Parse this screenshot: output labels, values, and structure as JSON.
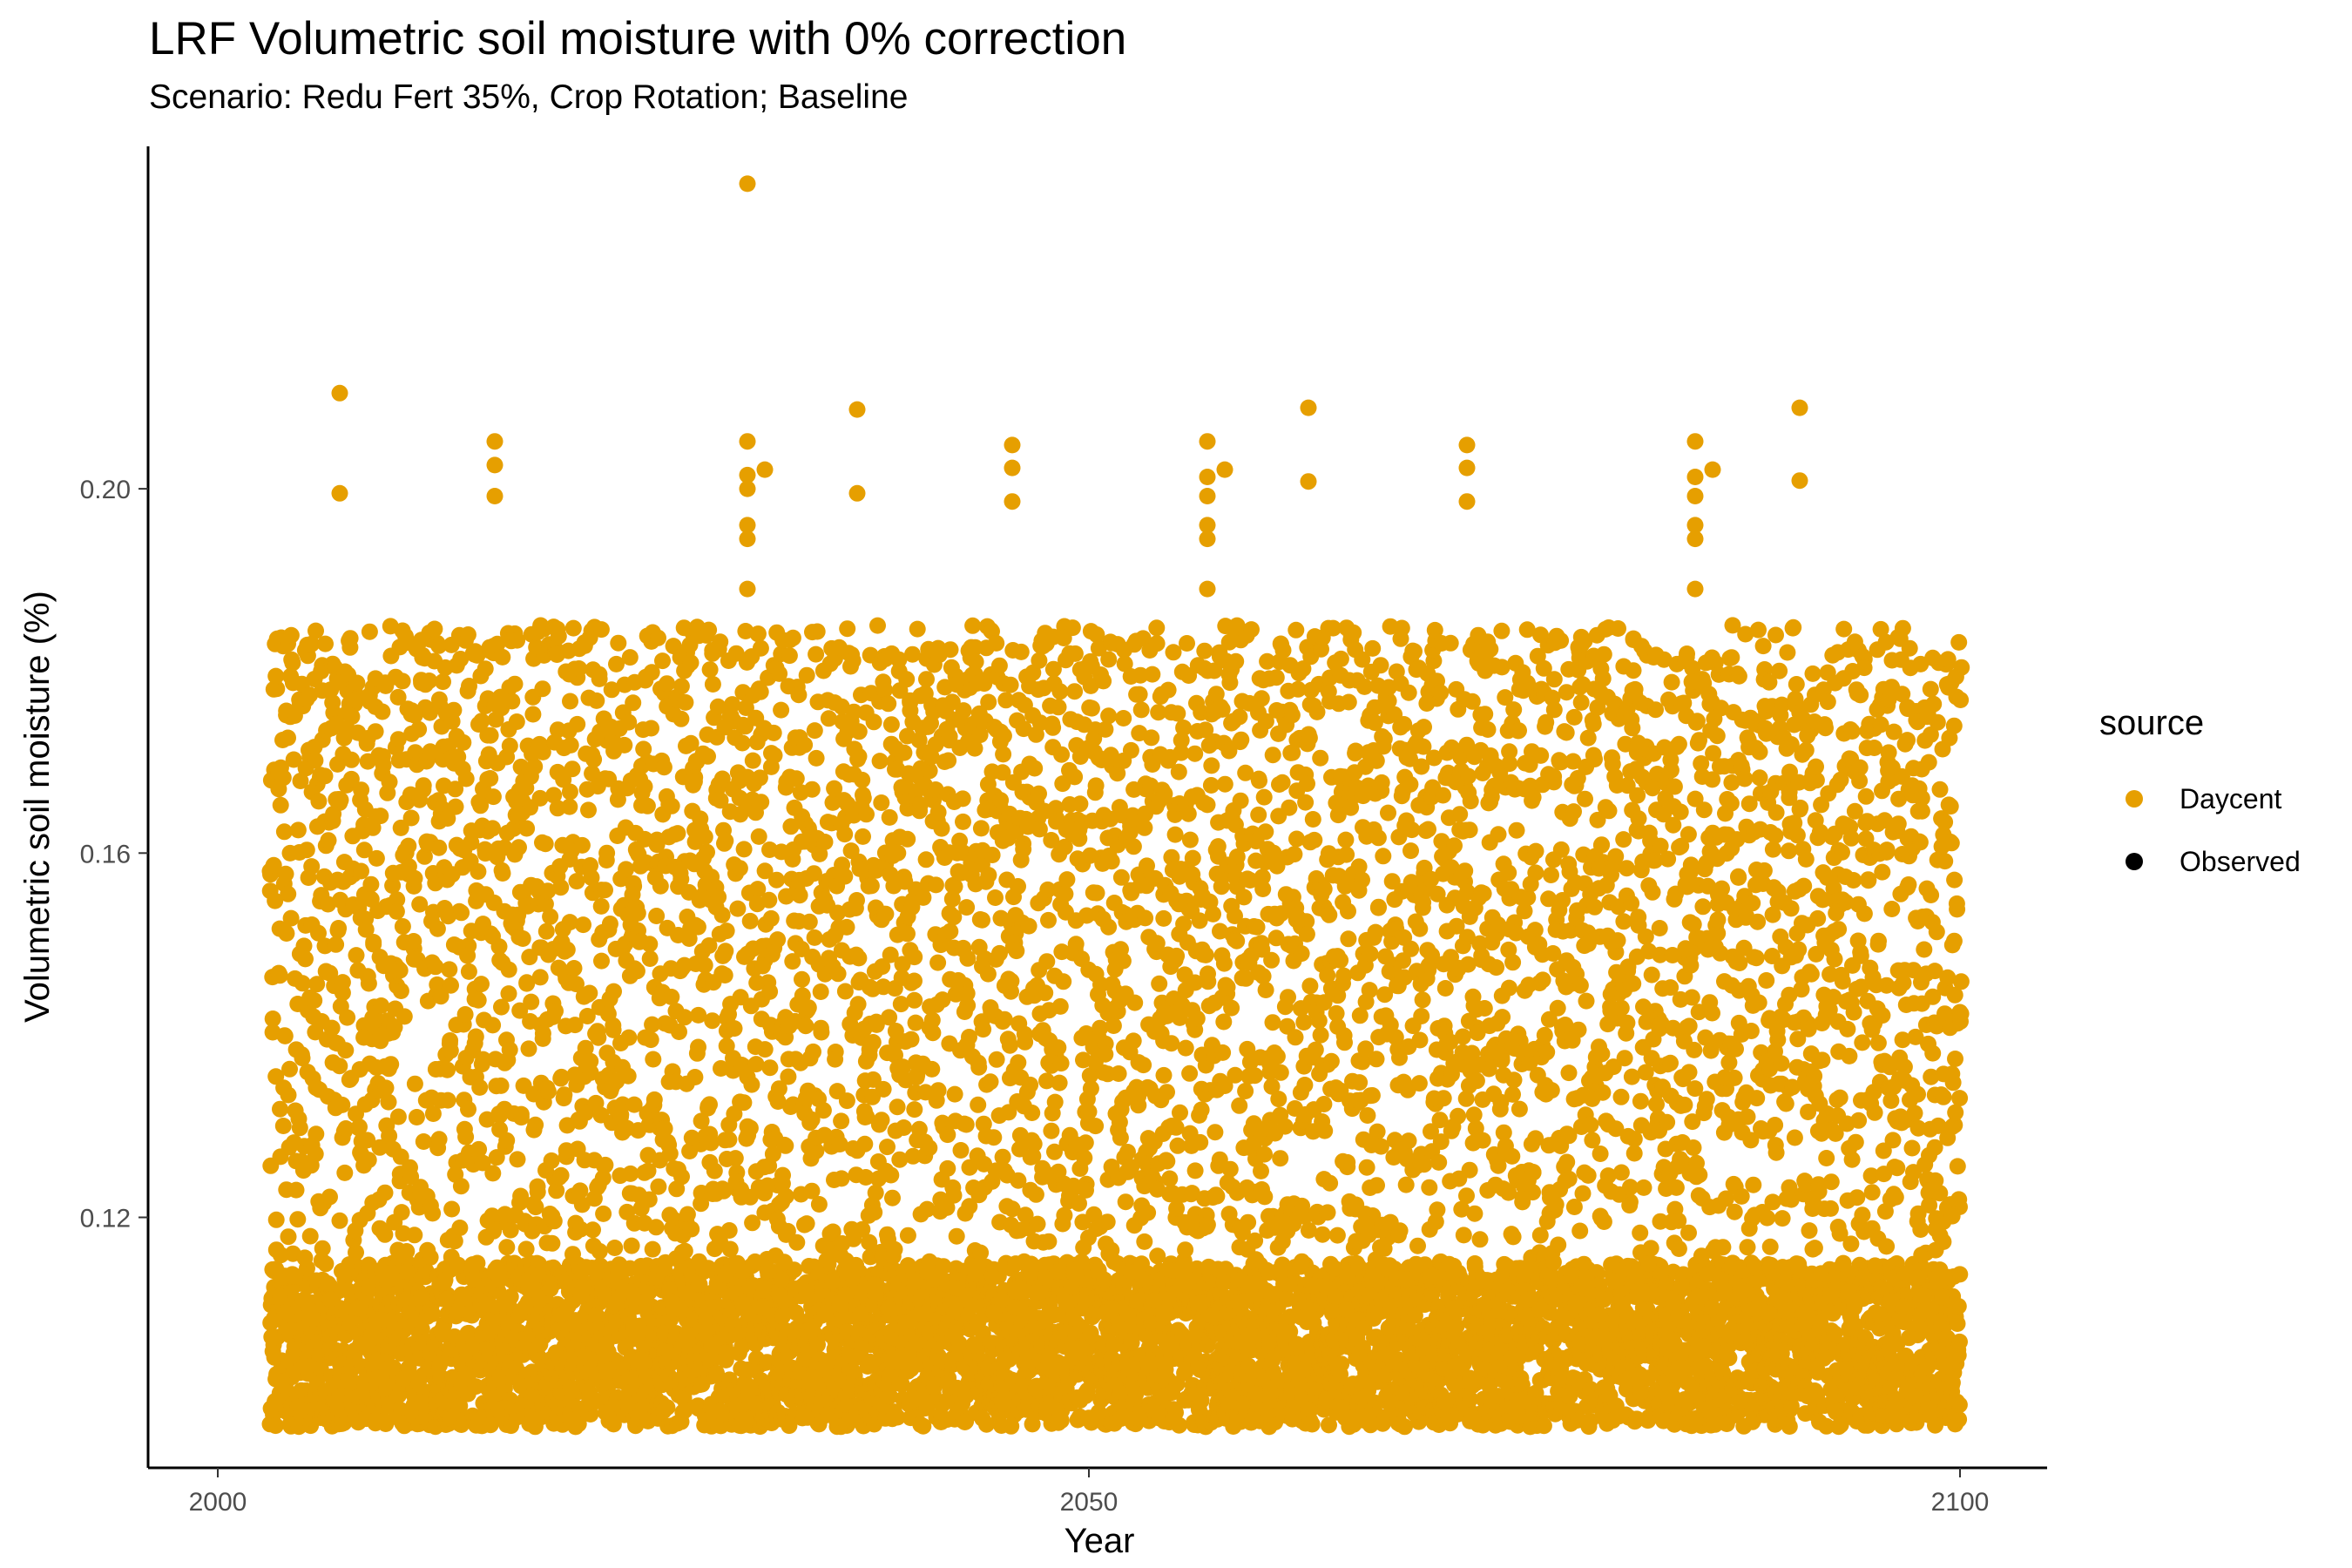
{
  "chart_data": {
    "type": "scatter",
    "title": "LRF Volumetric soil moisture with 0% correction",
    "subtitle": "Scenario: Redu Fert 35%, Crop Rotation; Baseline",
    "xlabel": "Year",
    "ylabel": "Volumetric soil moisture (%)",
    "xlim": [
      1996,
      2105
    ],
    "ylim": [
      0.0925,
      0.2376
    ],
    "x_ticks": [
      2000,
      2050,
      2100
    ],
    "y_ticks": [
      0.12,
      0.16,
      0.2
    ],
    "x_tick_labels": [
      "2000",
      "2050",
      "2100"
    ],
    "y_tick_labels": [
      "0.12",
      "0.16",
      "0.20"
    ],
    "grid": false,
    "legend": {
      "title": "source",
      "position": "right",
      "entries": [
        {
          "label": "Daycent",
          "color": "#E69F00"
        },
        {
          "label": "Observed",
          "color": "#000000"
        }
      ]
    },
    "series": [
      {
        "name": "Daycent",
        "color": "#E69F00",
        "x_range": [
          2003,
          2100
        ],
        "y_range_typical": [
          0.097,
          0.185
        ],
        "description_of_values": "daily simulated soil moisture, dense cloud between ~0.097 and ~0.185 with concentration near 0.10-0.115",
        "notable_points": [
          {
            "x": 2030.4,
            "y": 0.2335
          },
          {
            "x": 2007.0,
            "y": 0.2105
          },
          {
            "x": 2007.0,
            "y": 0.1995
          },
          {
            "x": 2015.9,
            "y": 0.2052
          },
          {
            "x": 2015.9,
            "y": 0.2026
          },
          {
            "x": 2015.9,
            "y": 0.1992
          },
          {
            "x": 2030.4,
            "y": 0.2052
          },
          {
            "x": 2030.4,
            "y": 0.2015
          },
          {
            "x": 2030.4,
            "y": 0.2
          },
          {
            "x": 2030.4,
            "y": 0.196
          },
          {
            "x": 2030.4,
            "y": 0.1945
          },
          {
            "x": 2030.4,
            "y": 0.189
          },
          {
            "x": 2031.4,
            "y": 0.2021
          },
          {
            "x": 2036.7,
            "y": 0.2087
          },
          {
            "x": 2036.7,
            "y": 0.1995
          },
          {
            "x": 2045.6,
            "y": 0.2048
          },
          {
            "x": 2045.6,
            "y": 0.2023
          },
          {
            "x": 2045.6,
            "y": 0.1986
          },
          {
            "x": 2056.8,
            "y": 0.2052
          },
          {
            "x": 2056.8,
            "y": 0.2013
          },
          {
            "x": 2056.8,
            "y": 0.1992
          },
          {
            "x": 2056.8,
            "y": 0.196
          },
          {
            "x": 2056.8,
            "y": 0.1945
          },
          {
            "x": 2056.8,
            "y": 0.189
          },
          {
            "x": 2057.8,
            "y": 0.2021
          },
          {
            "x": 2062.6,
            "y": 0.2089
          },
          {
            "x": 2062.6,
            "y": 0.2008
          },
          {
            "x": 2071.7,
            "y": 0.2048
          },
          {
            "x": 2071.7,
            "y": 0.2023
          },
          {
            "x": 2071.7,
            "y": 0.1986
          },
          {
            "x": 2084.8,
            "y": 0.2052
          },
          {
            "x": 2084.8,
            "y": 0.2013
          },
          {
            "x": 2084.8,
            "y": 0.1992
          },
          {
            "x": 2084.8,
            "y": 0.196
          },
          {
            "x": 2084.8,
            "y": 0.1945
          },
          {
            "x": 2084.8,
            "y": 0.189
          },
          {
            "x": 2085.8,
            "y": 0.2021
          },
          {
            "x": 2090.8,
            "y": 0.2089
          },
          {
            "x": 2090.8,
            "y": 0.2009
          }
        ]
      },
      {
        "name": "Observed",
        "color": "#000000",
        "x": [],
        "y": []
      }
    ]
  }
}
